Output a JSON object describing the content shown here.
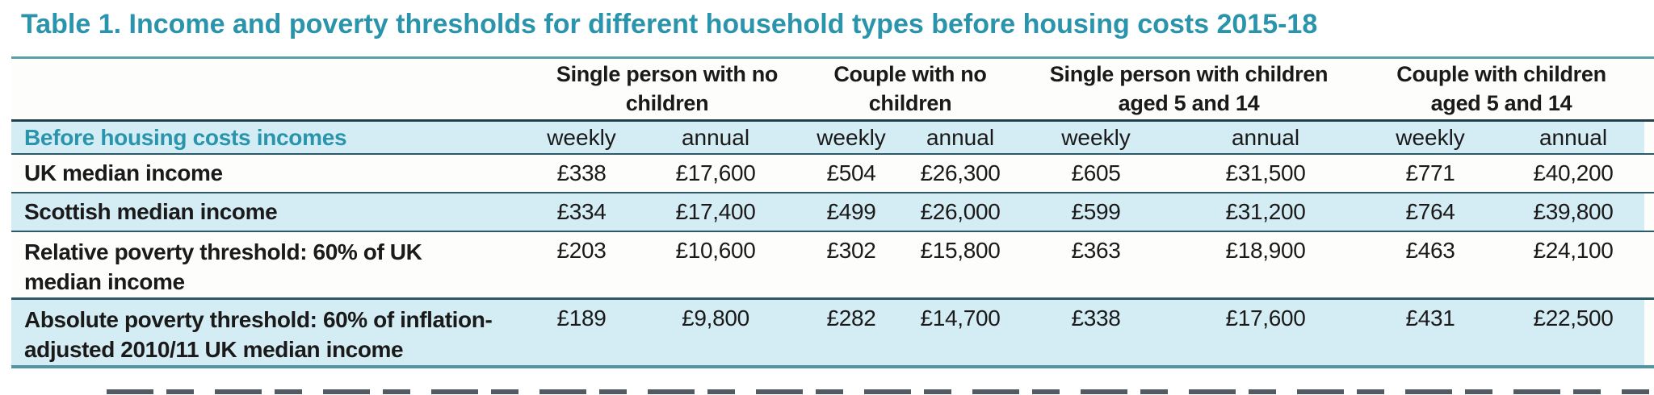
{
  "title": "Table 1. Income and poverty thresholds for different household types before housing costs 2015-18",
  "colors": {
    "accent_teal": "#2994ab",
    "row_blue": "#d4ecf4",
    "border_teal": "#5b9fa9",
    "border_dark": "#2c5a68"
  },
  "table": {
    "group_headers": [
      {
        "line1": "Single person with no",
        "line2": "children"
      },
      {
        "line1": "Couple with no",
        "line2": "children"
      },
      {
        "line1": "Single person with children",
        "line2": "aged 5 and 14"
      },
      {
        "line1": "Couple with children",
        "line2": "aged 5 and 14"
      }
    ],
    "subheader": {
      "label": "Before housing costs incomes",
      "cols": [
        "weekly",
        "annual",
        "weekly",
        "annual",
        "weekly",
        "annual",
        "weekly",
        "annual"
      ]
    },
    "rows": [
      {
        "label_lines": [
          "UK median income",
          ""
        ],
        "values": [
          "£338",
          "£17,600",
          "£504",
          "£26,300",
          "£605",
          "£31,500",
          "£771",
          "£40,200"
        ]
      },
      {
        "label_lines": [
          "Scottish median income",
          ""
        ],
        "values": [
          "£334",
          "£17,400",
          "£499",
          "£26,000",
          "£599",
          "£31,200",
          "£764",
          "£39,800"
        ]
      },
      {
        "label_lines": [
          "Relative poverty threshold: 60% of UK",
          "median income"
        ],
        "values": [
          "£203",
          "£10,600",
          "£302",
          "£15,800",
          "£363",
          "£18,900",
          "£463",
          "£24,100"
        ]
      },
      {
        "label_lines": [
          "Absolute poverty threshold: 60% of inflation-",
          "adjusted 2010/11 UK median income"
        ],
        "values": [
          "£189",
          "£9,800",
          "£282",
          "£14,700",
          "£338",
          "£17,600",
          "£431",
          "£22,500"
        ]
      }
    ]
  }
}
